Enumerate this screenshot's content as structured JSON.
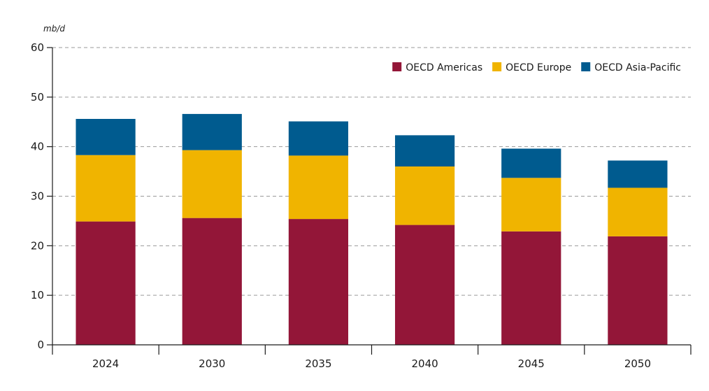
{
  "chart_data": {
    "type": "bar",
    "stacked": true,
    "title": "",
    "xlabel": "",
    "ylabel": "mb/d",
    "ylim": [
      0,
      60
    ],
    "yticks": [
      0,
      10,
      20,
      30,
      40,
      50,
      60
    ],
    "categories": [
      "2024",
      "2030",
      "2035",
      "2040",
      "2045",
      "2050"
    ],
    "grid": "horizontal dashed",
    "legend_position": "top-right",
    "series": [
      {
        "name": "OECD Americas",
        "color": "#931638",
        "values": [
          24.9,
          25.6,
          25.4,
          24.2,
          22.9,
          21.9
        ]
      },
      {
        "name": "OECD Europe",
        "color": "#f0b400",
        "values": [
          13.4,
          13.7,
          12.8,
          11.8,
          10.8,
          9.8
        ]
      },
      {
        "name": "OECD Asia-Pacific",
        "color": "#005b8f",
        "values": [
          7.3,
          7.3,
          6.9,
          6.3,
          5.9,
          5.5
        ]
      }
    ]
  }
}
